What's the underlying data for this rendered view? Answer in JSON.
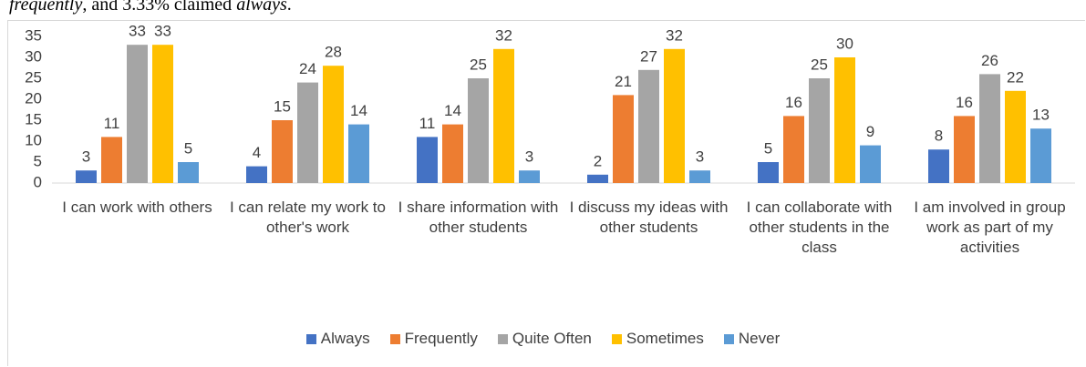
{
  "intro_text": {
    "part1": "frequently",
    "part2": ", and 3.33% claimed ",
    "part3": "always",
    "part4": "."
  },
  "chart_data": {
    "type": "bar",
    "categories": [
      "I can work with others",
      "I can relate my work to other's work",
      "I share information with other students",
      "I discuss my ideas with other students",
      "I can collaborate with other students in the class",
      "I am involved in group work as part of my activities"
    ],
    "series": [
      {
        "name": "Always",
        "color": "#4472c4",
        "values": [
          3,
          4,
          11,
          2,
          5,
          8
        ]
      },
      {
        "name": "Frequently",
        "color": "#ed7d31",
        "values": [
          11,
          15,
          14,
          21,
          16,
          16
        ]
      },
      {
        "name": "Quite Often",
        "color": "#a5a5a5",
        "values": [
          33,
          24,
          25,
          27,
          25,
          26
        ]
      },
      {
        "name": "Sometimes",
        "color": "#ffc000",
        "values": [
          33,
          28,
          32,
          32,
          30,
          22
        ]
      },
      {
        "name": "Never",
        "color": "#5b9bd5",
        "values": [
          5,
          14,
          3,
          3,
          9,
          13
        ]
      }
    ],
    "ylim": [
      0,
      35
    ],
    "yticks": [
      0,
      5,
      10,
      15,
      20,
      25,
      30,
      35
    ],
    "grid": false,
    "legend": "bottom"
  }
}
